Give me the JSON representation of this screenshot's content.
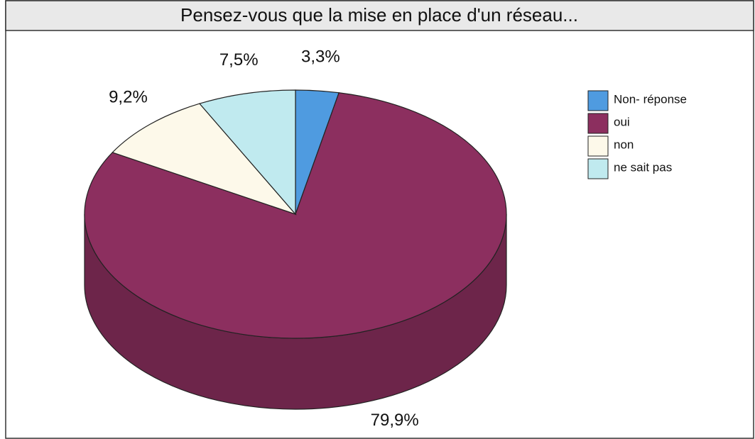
{
  "chart_data": {
    "type": "pie",
    "title": "Pensez-vous que la mise en place d'un réseau...",
    "categories": [
      "Non- réponse",
      "oui",
      "non",
      "ne sait pas"
    ],
    "values": [
      3.3,
      79.9,
      9.2,
      7.5
    ],
    "value_labels": [
      "3,3%",
      "79,9%",
      "9,2%",
      "7,5%"
    ],
    "colors": [
      "#4f9be0",
      "#8c2f5f",
      "#fdf9ea",
      "#c0eaef"
    ],
    "legend": "right"
  }
}
